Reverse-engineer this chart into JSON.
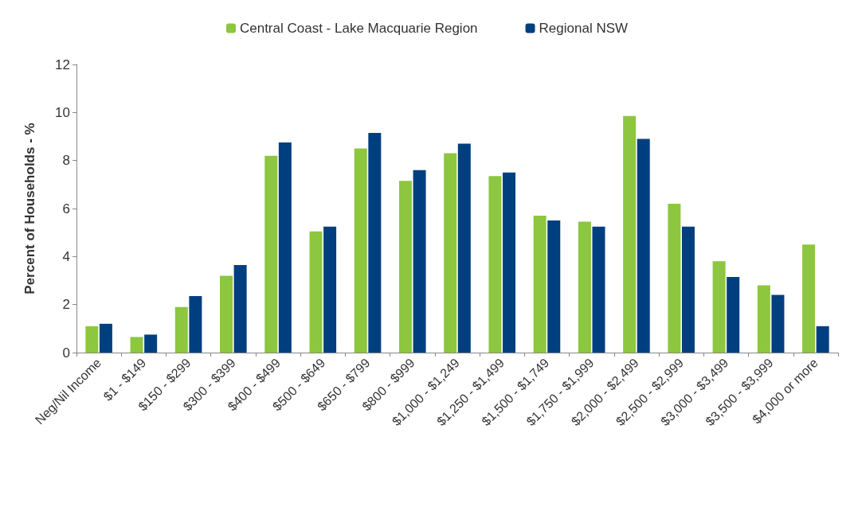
{
  "chart_data": {
    "type": "bar",
    "ylabel": "Percent of Households - %",
    "categories": [
      "Neg/Nil Income",
      "$1 - $149",
      "$150 - $299",
      "$300 - $399",
      "$400 - $499",
      "$500 - $649",
      "$650 - $799",
      "$800 - $999",
      "$1,000 - $1,249",
      "$1,250 - $1,499",
      "$1,500 - $1,749",
      "$1,750 - $1,999",
      "$2,000 - $2,499",
      "$2,500 - $2,999",
      "$3,000 - $3,499",
      "$3,500 - $3,999",
      "$4,000 or more"
    ],
    "series": [
      {
        "name": "Central Coast - Lake Macquarie Region",
        "color": "#8dc63f",
        "values": [
          1.1,
          0.65,
          1.9,
          3.2,
          8.2,
          5.05,
          8.5,
          7.15,
          8.3,
          7.35,
          5.7,
          5.45,
          9.85,
          6.2,
          3.8,
          2.8,
          4.5
        ]
      },
      {
        "name": "Regional NSW",
        "color": "#003f7f",
        "values": [
          1.2,
          0.75,
          2.35,
          3.65,
          8.75,
          5.25,
          9.15,
          7.6,
          8.7,
          7.5,
          5.5,
          5.25,
          8.9,
          5.25,
          3.15,
          2.4,
          1.1
        ]
      }
    ],
    "ylim": [
      0,
      12
    ],
    "yticks": [
      0,
      2,
      4,
      6,
      8,
      10,
      12
    ],
    "grid": false,
    "legend": "top"
  }
}
